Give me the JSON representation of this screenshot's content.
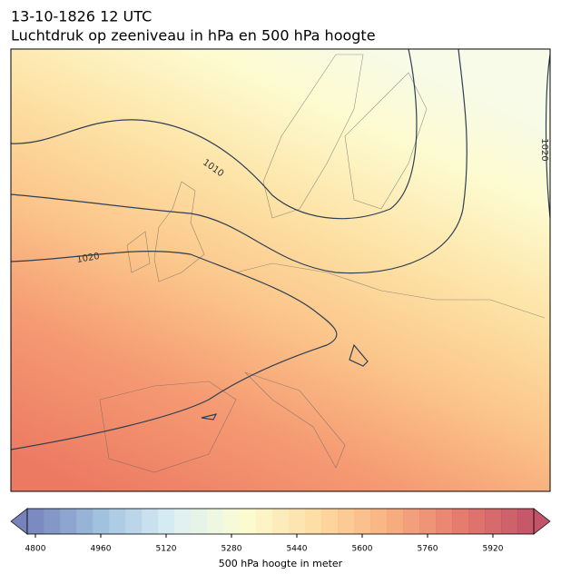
{
  "header": {
    "date": "13-10-1826 12 UTC",
    "title": "Luchtdruk op zeeniveau in hPa en 500 hPa hoogte"
  },
  "map": {
    "contour_labels": [
      "1010",
      "1020",
      "1020"
    ]
  },
  "colorbar": {
    "label": "500 hPa hoogte in meter",
    "lim": [
      4780,
      6020
    ],
    "step": 40,
    "ticks": [
      4800,
      4960,
      5120,
      5280,
      5440,
      5600,
      5760,
      5920
    ],
    "colormap": [
      "#5e6db0",
      "#8fb6d8",
      "#d4ecf3",
      "#fbfccb",
      "#fdd692",
      "#f7a26a",
      "#e06455",
      "#b8364f"
    ]
  }
}
